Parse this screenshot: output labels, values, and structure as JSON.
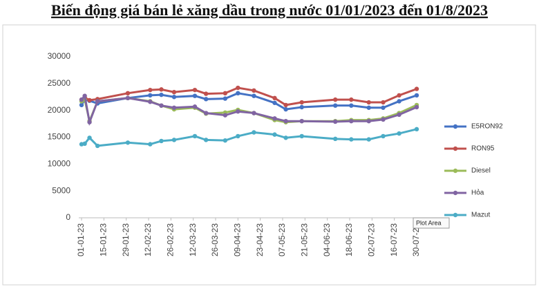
{
  "chart_data": {
    "type": "line",
    "title": "Biến động giá bán lẻ xăng dầu trong nước 01/01/2023 đến 01/8/2023",
    "annotation": "Plot Area",
    "x": [
      "01-01-23",
      "03-01-23",
      "06-01-23",
      "11-01-23",
      "30-01-23",
      "13-02-23",
      "20-02-23",
      "28-02-23",
      "13-03-23",
      "20-03-23",
      "01-04-23",
      "09-04-23",
      "19-04-23",
      "02-05-23",
      "09-05-23",
      "19-05-23",
      "09-06-23",
      "19-06-23",
      "30-06-23",
      "09-07-23",
      "19-07-23",
      "30-07-23"
    ],
    "series": [
      {
        "name": "E5RON92",
        "color": "#4472c4",
        "values": [
          21000,
          22000,
          21800,
          21300,
          22300,
          22800,
          22900,
          22500,
          22700,
          22100,
          22200,
          23200,
          22700,
          21400,
          20200,
          20600,
          20900,
          20900,
          20500,
          20500,
          21700,
          22800
        ]
      },
      {
        "name": "RON95",
        "color": "#c0504d",
        "values": [
          22000,
          22400,
          21900,
          22100,
          23200,
          23800,
          23900,
          23400,
          23800,
          23100,
          23200,
          24200,
          23700,
          22300,
          21000,
          21500,
          22000,
          22000,
          21500,
          21500,
          22800,
          24000
        ]
      },
      {
        "name": "Diesel",
        "color": "#9bbb59",
        "values": [
          21700,
          22000,
          18000,
          21700,
          22300,
          21700,
          20900,
          20200,
          20500,
          19400,
          19600,
          20100,
          19500,
          18200,
          17800,
          18000,
          18000,
          18200,
          18200,
          18500,
          19500,
          21000
        ]
      },
      {
        "name": "Hỏa",
        "color": "#8064a2",
        "values": [
          22000,
          22700,
          17800,
          21700,
          22300,
          21600,
          20900,
          20500,
          20700,
          19500,
          19100,
          19800,
          19500,
          18500,
          18000,
          18000,
          17900,
          18000,
          18000,
          18300,
          19200,
          20600
        ]
      },
      {
        "name": "Mazut",
        "color": "#4bacc6",
        "values": [
          13700,
          13800,
          14900,
          13400,
          14000,
          13700,
          14300,
          14500,
          15200,
          14500,
          14400,
          15200,
          15900,
          15500,
          14900,
          15200,
          14700,
          14600,
          14600,
          15200,
          15700,
          16500
        ]
      }
    ],
    "xlim": [
      "01-01-23",
      "30-07-23"
    ],
    "xticks": [
      "01-01-23",
      "15-01-23",
      "29-01-23",
      "12-02-23",
      "26-02-23",
      "12-03-23",
      "26-03-23",
      "09-04-23",
      "23-04-23",
      "07-05-23",
      "21-05-23",
      "04-06-23",
      "18-06-23",
      "02-07-23",
      "16-07-23",
      "30-07-23"
    ],
    "ylim": [
      0,
      30000
    ],
    "yticks": [
      0,
      5000,
      10000,
      15000,
      20000,
      25000,
      30000
    ],
    "grid": false,
    "legend": "right"
  }
}
